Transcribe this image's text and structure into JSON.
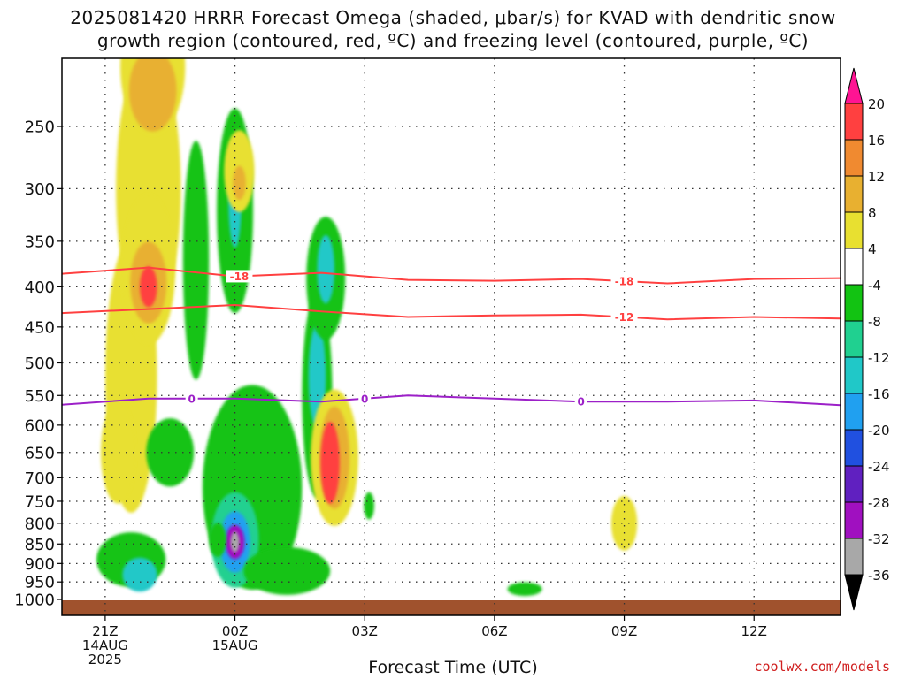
{
  "title": {
    "line1": "2025081420 HRRR Forecast Omega (shaded, μbar/s) for KVAD with dendritic snow",
    "line2": "growth region (contoured, red, ºC) and freezing level (contoured, purple, ºC)"
  },
  "watermark": "coolwx.com/models",
  "chart_data": {
    "type": "heatmap",
    "title": "2025081420 HRRR Forecast Omega (shaded, μbar/s) for KVAD with dendritic snow growth region (contoured, red, ºC) and freezing level (contoured, purple, ºC)",
    "xlabel": "Forecast Time (UTC)",
    "ylabel": "",
    "y_log": true,
    "y_inverted": true,
    "yticks": [
      250,
      300,
      350,
      400,
      450,
      500,
      550,
      600,
      650,
      700,
      750,
      800,
      850,
      900,
      950,
      1000
    ],
    "xlim_hours": [
      20,
      38
    ],
    "xticks": [
      {
        "hour": 21,
        "label": "21Z",
        "sub1": "14AUG",
        "sub2": "2025"
      },
      {
        "hour": 24,
        "label": "00Z",
        "sub1": "15AUG",
        "sub2": ""
      },
      {
        "hour": 27,
        "label": "03Z",
        "sub1": "",
        "sub2": ""
      },
      {
        "hour": 30,
        "label": "06Z",
        "sub1": "",
        "sub2": ""
      },
      {
        "hour": 33,
        "label": "09Z",
        "sub1": "",
        "sub2": ""
      },
      {
        "hour": 36,
        "label": "12Z",
        "sub1": "",
        "sub2": ""
      }
    ],
    "colorbar": {
      "levels": [
        20,
        16,
        12,
        8,
        4,
        -4,
        -8,
        -12,
        -16,
        -20,
        -24,
        -28,
        -32,
        -36
      ],
      "colors": [
        "#ff1493",
        "#ff4040",
        "#f08a30",
        "#e8b030",
        "#e8e030",
        "#ffffff",
        "#12c312",
        "#20d090",
        "#20c8c8",
        "#20a0f0",
        "#2050e0",
        "#6020c0",
        "#a010c0",
        "#a8a8a8",
        "#000000"
      ]
    },
    "blobs": [
      {
        "x": 22.0,
        "p": 300,
        "rx": 0.75,
        "ry": 0.4,
        "value": 6
      },
      {
        "x": 22.1,
        "p": 210,
        "rx": 0.75,
        "ry": 0.2,
        "value": 8
      },
      {
        "x": 22.1,
        "p": 225,
        "rx": 0.55,
        "ry": 0.12,
        "value": 12
      },
      {
        "x": 21.6,
        "p": 520,
        "rx": 0.6,
        "ry": 0.4,
        "value": 5
      },
      {
        "x": 21.3,
        "p": 650,
        "rx": 0.4,
        "ry": 0.15,
        "value": 6
      },
      {
        "x": 22.0,
        "p": 380,
        "rx": 0.62,
        "ry": 0.22,
        "value": 8
      },
      {
        "x": 22.0,
        "p": 395,
        "rx": 0.42,
        "ry": 0.12,
        "value": 12
      },
      {
        "x": 22.0,
        "p": 400,
        "rx": 0.2,
        "ry": 0.06,
        "value": 17
      },
      {
        "x": 23.1,
        "p": 370,
        "rx": 0.3,
        "ry": 0.35,
        "value": -5
      },
      {
        "x": 24.0,
        "p": 320,
        "rx": 0.42,
        "ry": 0.3,
        "value": -6
      },
      {
        "x": 24.0,
        "p": 310,
        "rx": 0.15,
        "ry": 0.14,
        "value": -13
      },
      {
        "x": 24.0,
        "p": 300,
        "rx": 0.08,
        "ry": 0.07,
        "value": -17
      },
      {
        "x": 24.4,
        "p": 720,
        "rx": 1.15,
        "ry": 0.3,
        "value": -5
      },
      {
        "x": 24.0,
        "p": 840,
        "rx": 0.55,
        "ry": 0.14,
        "value": -10
      },
      {
        "x": 24.0,
        "p": 845,
        "rx": 0.35,
        "ry": 0.09,
        "value": -18
      },
      {
        "x": 24.0,
        "p": 845,
        "rx": 0.22,
        "ry": 0.05,
        "value": -28
      },
      {
        "x": 24.0,
        "p": 845,
        "rx": 0.1,
        "ry": 0.03,
        "value": -34
      },
      {
        "x": 21.6,
        "p": 890,
        "rx": 0.8,
        "ry": 0.08,
        "value": -6
      },
      {
        "x": 21.8,
        "p": 930,
        "rx": 0.4,
        "ry": 0.05,
        "value": -12
      },
      {
        "x": 25.2,
        "p": 920,
        "rx": 1.0,
        "ry": 0.07,
        "value": -6
      },
      {
        "x": 22.5,
        "p": 650,
        "rx": 0.55,
        "ry": 0.1,
        "value": -7
      },
      {
        "x": 25.9,
        "p": 550,
        "rx": 0.35,
        "ry": 0.3,
        "value": -6
      },
      {
        "x": 25.9,
        "p": 520,
        "rx": 0.2,
        "ry": 0.15,
        "value": -12
      },
      {
        "x": 26.1,
        "p": 390,
        "rx": 0.45,
        "ry": 0.18,
        "value": -6
      },
      {
        "x": 26.1,
        "p": 380,
        "rx": 0.2,
        "ry": 0.1,
        "value": -14
      },
      {
        "x": 26.3,
        "p": 660,
        "rx": 0.55,
        "ry": 0.2,
        "value": 5
      },
      {
        "x": 26.3,
        "p": 660,
        "rx": 0.35,
        "ry": 0.15,
        "value": 10
      },
      {
        "x": 26.2,
        "p": 670,
        "rx": 0.22,
        "ry": 0.12,
        "value": 18
      },
      {
        "x": 24.1,
        "p": 285,
        "rx": 0.35,
        "ry": 0.12,
        "value": 6
      },
      {
        "x": 24.1,
        "p": 295,
        "rx": 0.15,
        "ry": 0.05,
        "value": 9
      },
      {
        "x": 23.6,
        "p": 840,
        "rx": 0.2,
        "ry": 0.05,
        "value": -6
      },
      {
        "x": 33.0,
        "p": 800,
        "rx": 0.3,
        "ry": 0.08,
        "value": 6
      },
      {
        "x": 30.7,
        "p": 970,
        "rx": 0.4,
        "ry": 0.02,
        "value": -6
      },
      {
        "x": 27.1,
        "p": 760,
        "rx": 0.12,
        "ry": 0.04,
        "value": -6
      }
    ],
    "contours": [
      {
        "name": "-18",
        "color": "#ff4040",
        "label_hours": [
          24.1,
          33.0
        ],
        "points": [
          [
            20,
            385
          ],
          [
            22,
            378
          ],
          [
            24,
            388
          ],
          [
            26,
            384
          ],
          [
            28,
            392
          ],
          [
            30,
            393
          ],
          [
            32,
            391
          ],
          [
            34,
            396
          ],
          [
            36,
            391
          ],
          [
            38,
            390
          ]
        ]
      },
      {
        "name": "-12",
        "color": "#ff4040",
        "label_hours": [
          33.0
        ],
        "points": [
          [
            20,
            432
          ],
          [
            22,
            427
          ],
          [
            24,
            422
          ],
          [
            26,
            430
          ],
          [
            28,
            437
          ],
          [
            30,
            435
          ],
          [
            32,
            434
          ],
          [
            34,
            440
          ],
          [
            36,
            437
          ],
          [
            38,
            439
          ]
        ]
      },
      {
        "name": "0",
        "color": "#9c20c8",
        "label_hours": [
          23.0,
          27.0,
          32.0
        ],
        "points": [
          [
            20,
            565
          ],
          [
            22,
            555
          ],
          [
            24,
            555
          ],
          [
            26,
            560
          ],
          [
            28,
            550
          ],
          [
            30,
            555
          ],
          [
            32,
            560
          ],
          [
            34,
            560
          ],
          [
            36,
            558
          ],
          [
            38,
            566
          ]
        ]
      }
    ],
    "terrain_color": "#a0522d"
  }
}
